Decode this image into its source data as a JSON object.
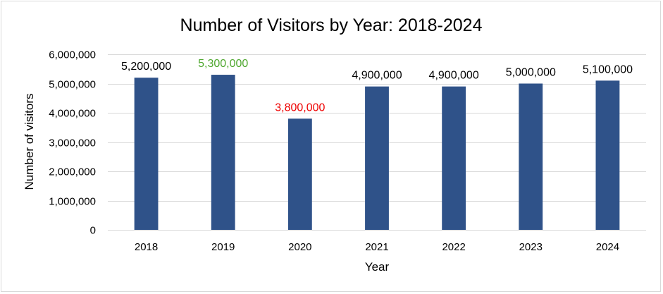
{
  "chart_data": {
    "type": "bar",
    "title": "Number of Visitors by Year: 2018-2024",
    "xlabel": "Year",
    "ylabel": "Number of visitors",
    "categories": [
      "2018",
      "2019",
      "2020",
      "2021",
      "2022",
      "2023",
      "2024"
    ],
    "values": [
      5200000,
      5300000,
      3800000,
      4900000,
      4900000,
      5000000,
      5100000
    ],
    "data_labels": [
      "5,200,000",
      "5,300,000",
      "3,800,000",
      "4,900,000",
      "4,900,000",
      "5,000,000",
      "5,100,000"
    ],
    "ylim": [
      0,
      6000000
    ],
    "yticks": [
      0,
      1000000,
      2000000,
      3000000,
      4000000,
      5000000,
      6000000
    ],
    "ytick_labels": [
      "0",
      "1,000,000",
      "2,000,000",
      "3,000,000",
      "4,000,000",
      "5,000,000",
      "6,000,000"
    ],
    "grid": true,
    "legend": "none",
    "colors": {
      "bar": "#2f5289",
      "grid": "#d9d9d9",
      "label_default": "#000000",
      "label_max": "#4ea72e",
      "label_min": "#ee0000"
    },
    "highlight": {
      "max_index": 1,
      "min_index": 2
    }
  }
}
